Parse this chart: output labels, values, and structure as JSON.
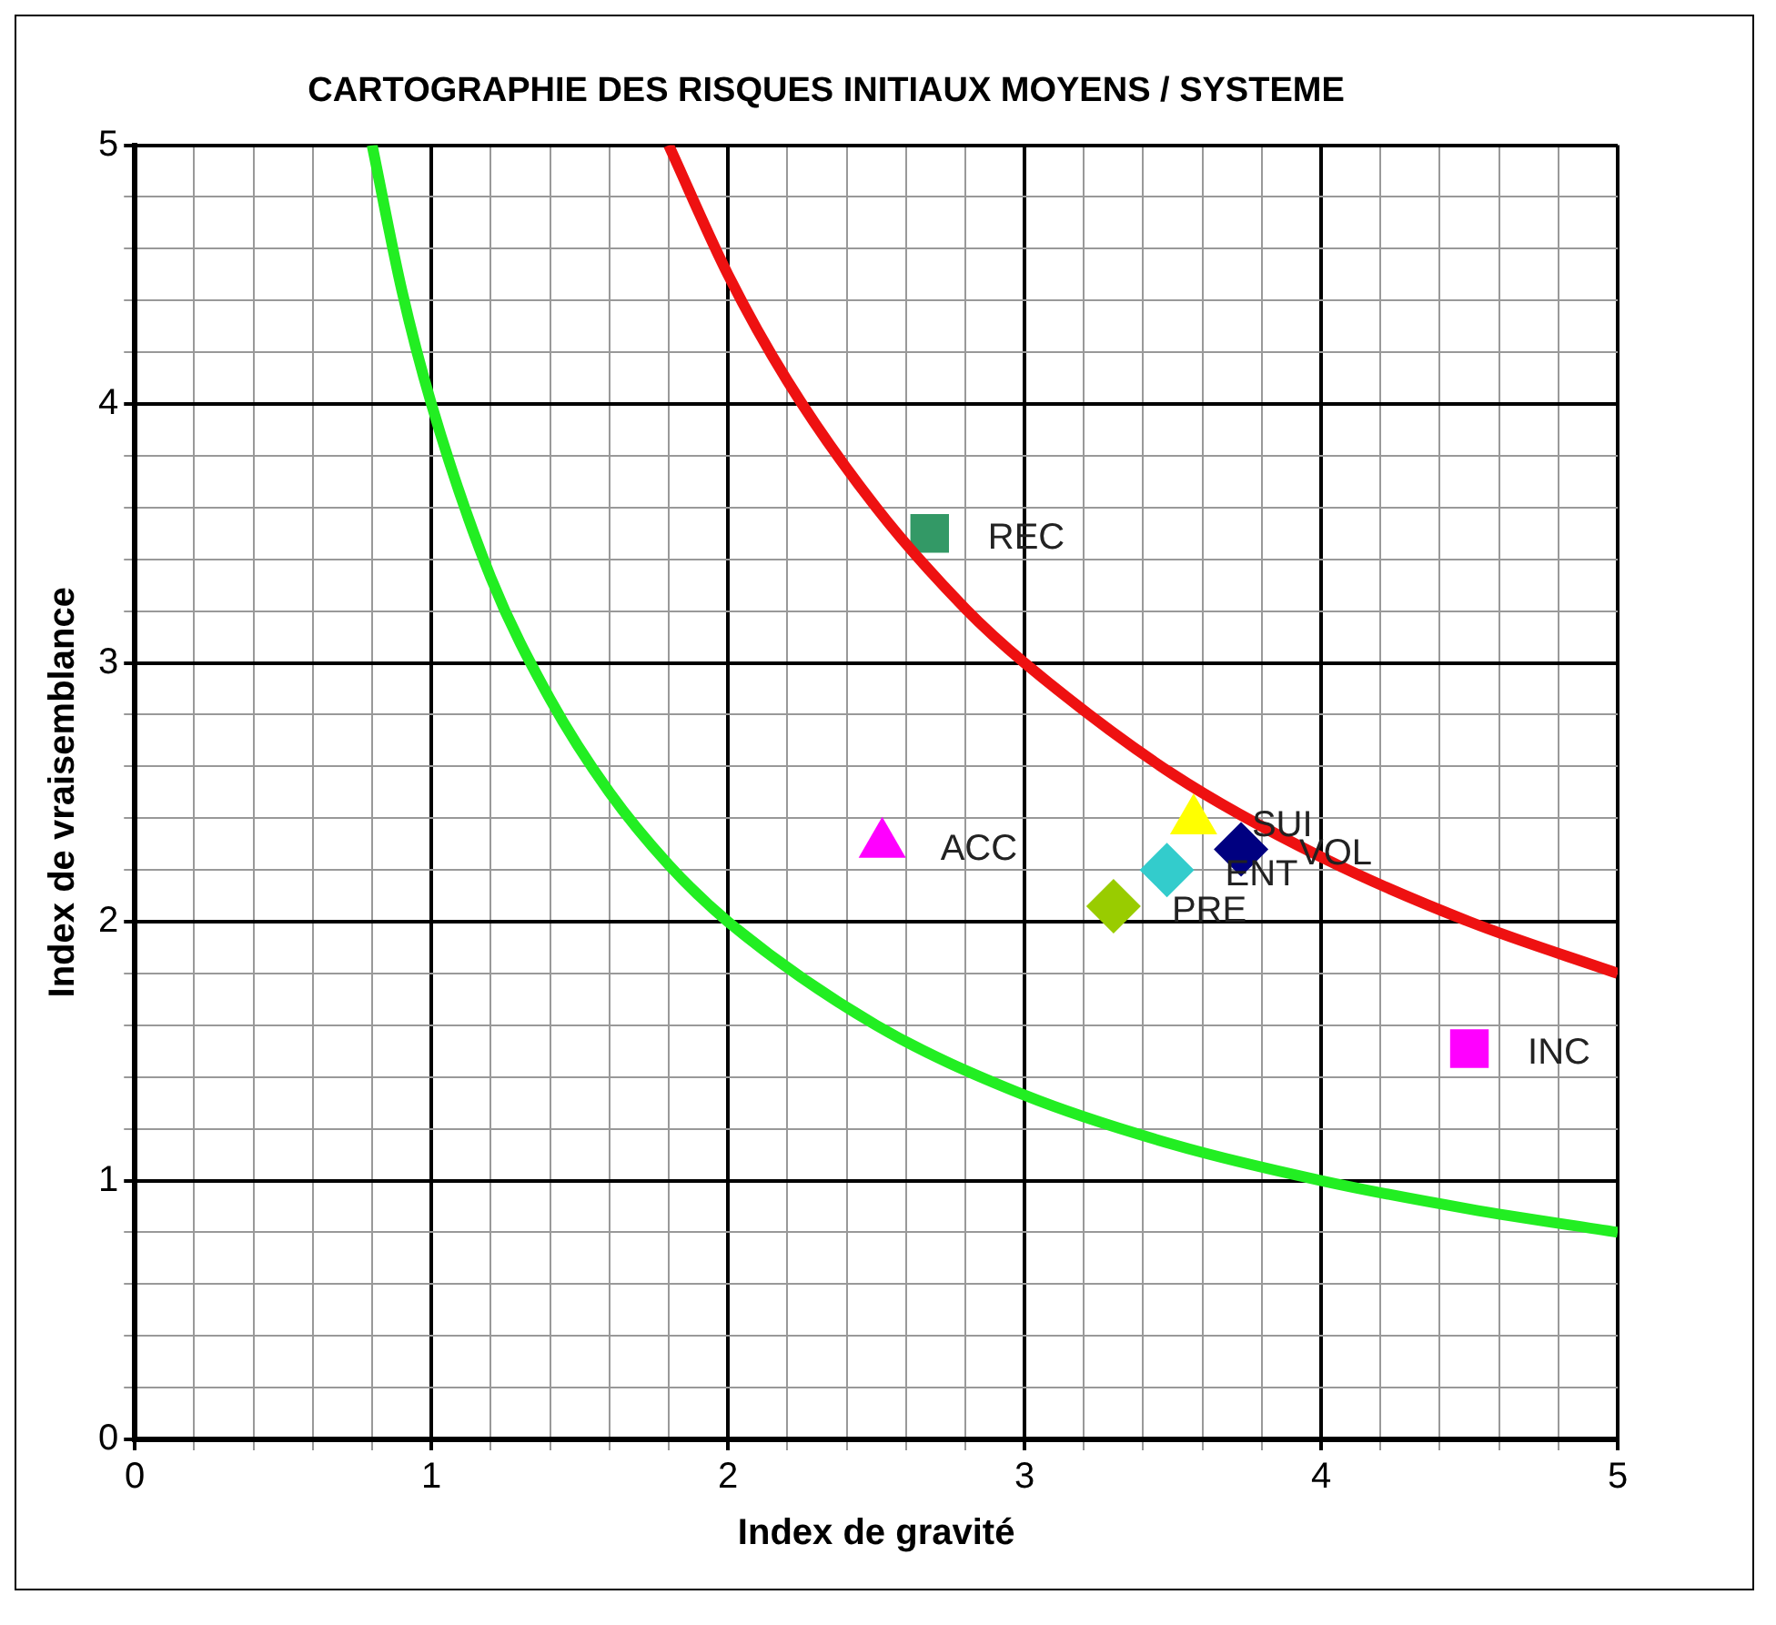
{
  "chart_data": {
    "type": "scatter",
    "title": "CARTOGRAPHIE DES RISQUES INITIAUX MOYENS / SYSTEME",
    "xlabel": "Index de gravité",
    "ylabel": "Index de vraisemblance",
    "xlim": [
      0,
      5
    ],
    "ylim": [
      0,
      5
    ],
    "xticks": [
      0,
      {
        "value": 0.2,
        "label": null
      },
      {
        "value": 0.4,
        "label": null
      },
      {
        "value": 0.6,
        "label": null
      },
      {
        "value": 0.8,
        "label": null
      },
      1,
      {
        "value": 1.2,
        "label": null
      },
      {
        "value": 1.4,
        "label": null
      },
      {
        "value": 1.6,
        "label": null
      },
      {
        "value": 1.8,
        "label": null
      },
      2,
      {
        "value": 2.2,
        "label": null
      },
      {
        "value": 2.4,
        "label": null
      },
      {
        "value": 2.6,
        "label": null
      },
      {
        "value": 2.8,
        "label": null
      },
      3,
      {
        "value": 3.2,
        "label": null
      },
      {
        "value": 3.4,
        "label": null
      },
      {
        "value": 3.6,
        "label": null
      },
      {
        "value": 3.8,
        "label": null
      },
      4,
      {
        "value": 4.2,
        "label": null
      },
      {
        "value": 4.4,
        "label": null
      },
      {
        "value": 4.6,
        "label": null
      },
      {
        "value": 4.8,
        "label": null
      },
      5
    ],
    "yticks": [
      0,
      {
        "value": 0.2,
        "label": null
      },
      {
        "value": 0.4,
        "label": null
      },
      {
        "value": 0.6,
        "label": null
      },
      {
        "value": 0.8,
        "label": null
      },
      1,
      {
        "value": 1.2,
        "label": null
      },
      {
        "value": 1.4,
        "label": null
      },
      {
        "value": 1.6,
        "label": null
      },
      {
        "value": 1.8,
        "label": null
      },
      2,
      {
        "value": 2.2,
        "label": null
      },
      {
        "value": 2.4,
        "label": null
      },
      {
        "value": 2.6,
        "label": null
      },
      {
        "value": 2.8,
        "label": null
      },
      3,
      {
        "value": 3.2,
        "label": null
      },
      {
        "value": 3.4,
        "label": null
      },
      {
        "value": 3.6,
        "label": null
      },
      {
        "value": 3.8,
        "label": null
      },
      4,
      {
        "value": 4.2,
        "label": null
      },
      {
        "value": 4.4,
        "label": null
      },
      {
        "value": 4.6,
        "label": null
      },
      {
        "value": 4.8,
        "label": null
      },
      5
    ],
    "grid": true,
    "legend": false,
    "series": [
      {
        "type": "line",
        "color": "#22ee22",
        "marker": "none",
        "x": [
          0.8,
          0.9,
          1,
          1.2,
          1.4,
          1.6,
          1.8,
          2,
          2.5,
          3,
          3.5,
          4,
          4.5,
          5
        ],
        "values": [
          5,
          4.44,
          4,
          3.33,
          2.86,
          2.5,
          2.22,
          2,
          1.6,
          1.33,
          1.14,
          1,
          0.89,
          0.8
        ]
      },
      {
        "type": "line",
        "color": "#ee1111",
        "marker": "none",
        "x": [
          1.8,
          2,
          2.2,
          2.5,
          2.8,
          3,
          3.5,
          4,
          4.5,
          5
        ],
        "values": [
          5,
          4.5,
          4.09,
          3.6,
          3.21,
          3,
          2.57,
          2.25,
          2,
          1.8
        ]
      },
      {
        "name": "REC",
        "color": "#339966",
        "marker": "square",
        "x": [
          2.68
        ],
        "values": [
          3.5
        ]
      },
      {
        "name": "ACC",
        "color": "#ff00ff",
        "marker": "triangle",
        "x": [
          2.52
        ],
        "values": [
          2.3
        ]
      },
      {
        "name": "PRE",
        "color": "#99cc00",
        "marker": "diamond",
        "x": [
          3.3
        ],
        "values": [
          2.06
        ]
      },
      {
        "name": "ENT",
        "color": "#33cccc",
        "marker": "diamond",
        "x": [
          3.48
        ],
        "values": [
          2.2
        ]
      },
      {
        "name": "SUI",
        "color": "#ffff00",
        "marker": "triangle",
        "x": [
          3.57
        ],
        "values": [
          2.39
        ]
      },
      {
        "name": "VOL",
        "color": "#000080",
        "marker": "diamond",
        "x": [
          3.73
        ],
        "values": [
          2.28
        ]
      },
      {
        "name": "INC",
        "color": "#ff00ff",
        "marker": "square",
        "x": [
          4.5
        ],
        "values": [
          1.51
        ]
      }
    ]
  }
}
